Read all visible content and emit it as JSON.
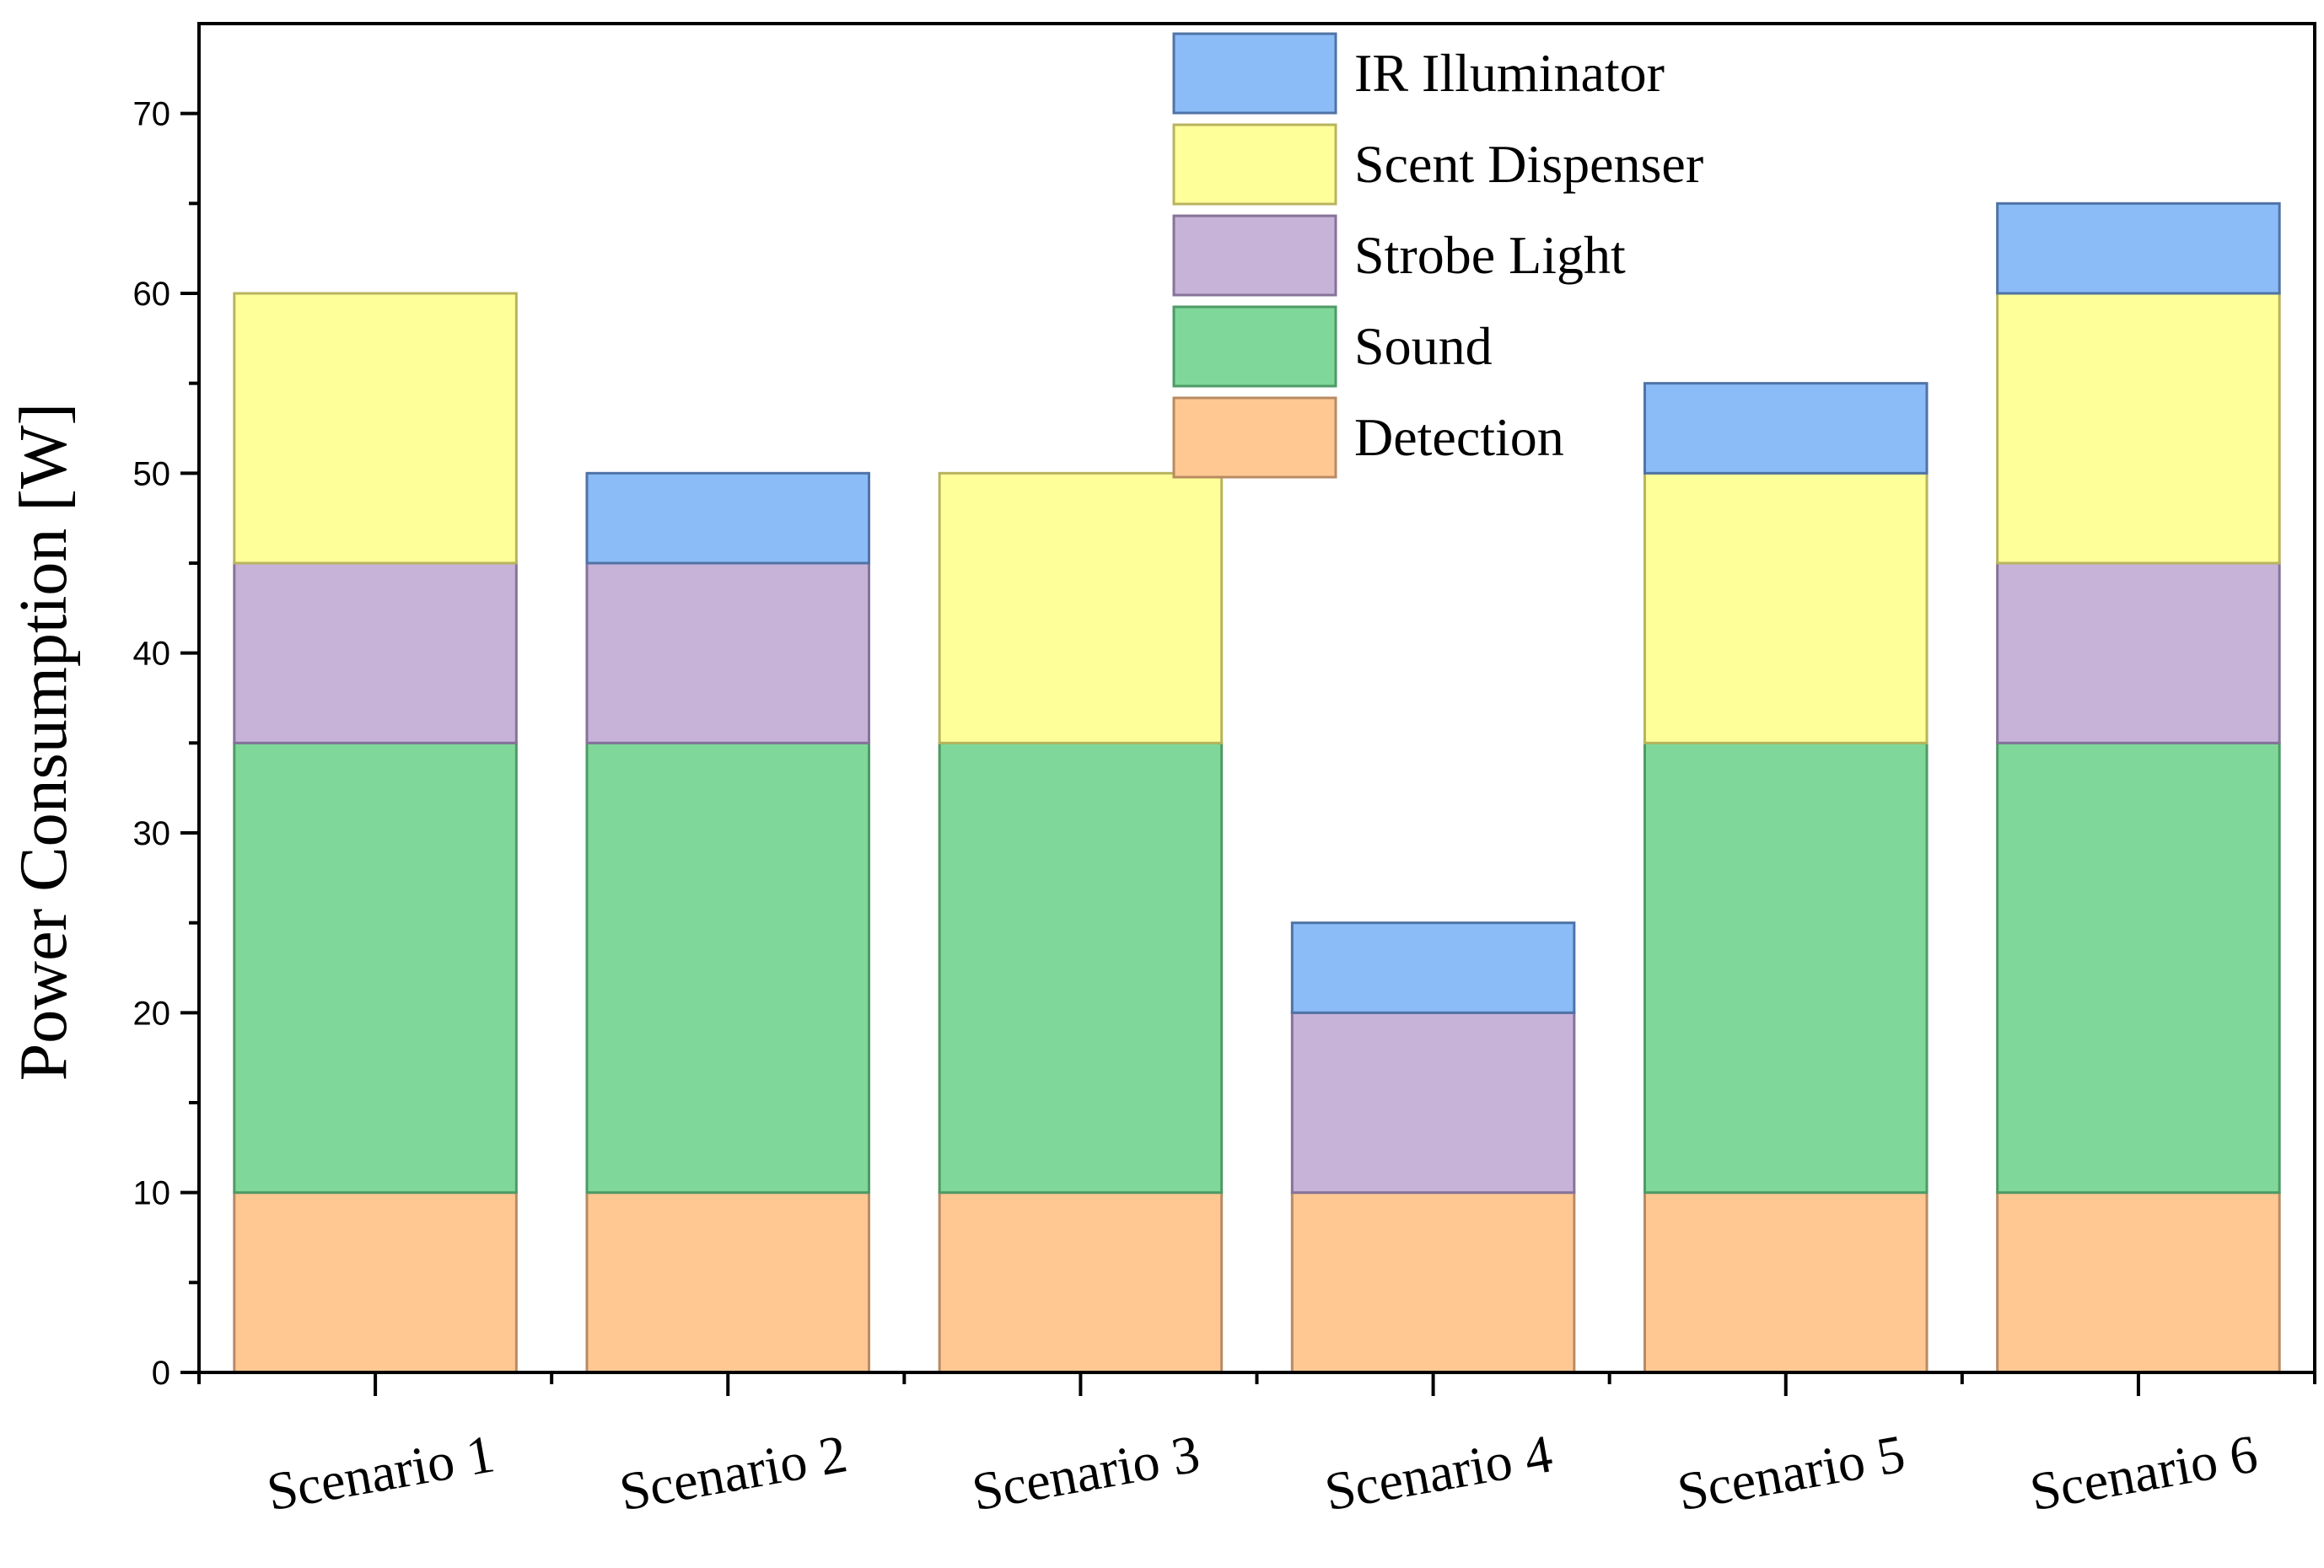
{
  "chart_data": {
    "type": "bar",
    "stacked": true,
    "title": "",
    "xlabel": "",
    "ylabel": "Power Consumption [W]",
    "ylim": [
      0,
      75
    ],
    "yticks": [
      0,
      10,
      20,
      30,
      40,
      50,
      60,
      70
    ],
    "grid": false,
    "legend_position": "top-center",
    "categories": [
      "Scenario 1",
      "Scenario 2",
      "Scenario 3",
      "Scenario 4",
      "Scenario 5",
      "Scenario 6"
    ],
    "series": [
      {
        "name": "Detection",
        "values": [
          10,
          10,
          10,
          10,
          10,
          10
        ],
        "color": "#FFC893",
        "edge": "#B98A63"
      },
      {
        "name": "Sound",
        "values": [
          25,
          25,
          25,
          0,
          25,
          25
        ],
        "color": "#7FD899",
        "edge": "#4E9A66"
      },
      {
        "name": "Strobe Light",
        "values": [
          10,
          10,
          0,
          10,
          0,
          10
        ],
        "color": "#C8B3D8",
        "edge": "#85739A"
      },
      {
        "name": "Scent Dispenser",
        "values": [
          15,
          0,
          15,
          0,
          15,
          15
        ],
        "color": "#FFFF99",
        "edge": "#B8B45E"
      },
      {
        "name": "IR Illuminator",
        "values": [
          0,
          5,
          0,
          5,
          5,
          5
        ],
        "color": "#8BBCF7",
        "edge": "#4F73A6"
      }
    ],
    "legend_order": [
      "IR Illuminator",
      "Scent Dispenser",
      "Strobe Light",
      "Sound",
      "Detection"
    ]
  }
}
